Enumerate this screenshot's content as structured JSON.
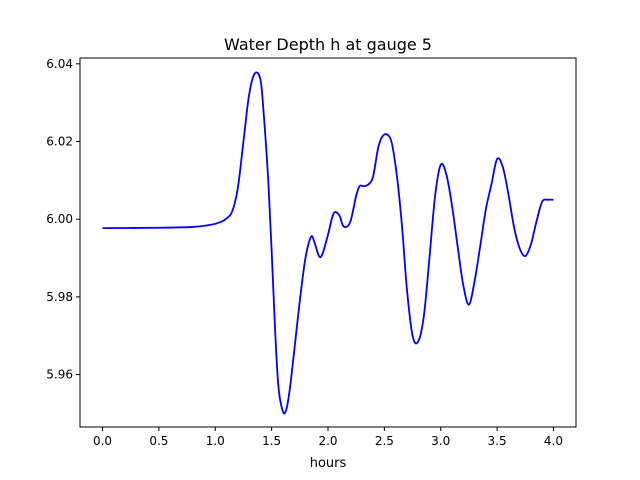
{
  "chart_data": {
    "type": "line",
    "title": "Water Depth h at gauge 5",
    "xlabel": "hours",
    "ylabel": "",
    "xlim": [
      -0.2,
      4.2
    ],
    "ylim": [
      5.9465,
      6.0415
    ],
    "xticks": [
      0.0,
      0.5,
      1.0,
      1.5,
      2.0,
      2.5,
      3.0,
      3.5,
      4.0
    ],
    "xtick_labels": [
      "0.0",
      "0.5",
      "1.0",
      "1.5",
      "2.0",
      "2.5",
      "3.0",
      "3.5",
      "4.0"
    ],
    "yticks": [
      5.96,
      5.98,
      6.0,
      6.02,
      6.04
    ],
    "ytick_labels": [
      "5.96",
      "5.98",
      "6.00",
      "6.02",
      "6.04"
    ],
    "grid": false,
    "series": [
      {
        "color": "#0000ff",
        "x": [
          0.0,
          0.5,
          0.8,
          0.95,
          1.05,
          1.1,
          1.15,
          1.2,
          1.25,
          1.3,
          1.35,
          1.4,
          1.43,
          1.47,
          1.5,
          1.53,
          1.56,
          1.6,
          1.63,
          1.66,
          1.7,
          1.75,
          1.8,
          1.85,
          1.88,
          1.92,
          1.95,
          2.0,
          2.05,
          2.1,
          2.13,
          2.16,
          2.2,
          2.25,
          2.28,
          2.32,
          2.36,
          2.4,
          2.45,
          2.5,
          2.55,
          2.58,
          2.62,
          2.66,
          2.7,
          2.75,
          2.8,
          2.85,
          2.9,
          2.95,
          3.0,
          3.05,
          3.1,
          3.15,
          3.2,
          3.25,
          3.3,
          3.35,
          3.4,
          3.45,
          3.5,
          3.55,
          3.6,
          3.65,
          3.7,
          3.75,
          3.8,
          3.85,
          3.9,
          3.95,
          4.0
        ],
        "y": [
          5.9977,
          5.9978,
          5.998,
          5.9985,
          5.9993,
          6.0002,
          6.002,
          6.008,
          6.02,
          6.032,
          6.0375,
          6.036,
          6.027,
          6.01,
          5.992,
          5.972,
          5.957,
          5.9505,
          5.951,
          5.956,
          5.966,
          5.979,
          5.99,
          5.9955,
          5.994,
          5.9905,
          5.991,
          5.996,
          6.0015,
          6.001,
          5.9985,
          5.998,
          5.9995,
          6.006,
          6.0085,
          6.0085,
          6.009,
          6.011,
          6.019,
          6.0218,
          6.021,
          6.0175,
          6.009,
          5.997,
          5.982,
          5.97,
          5.9685,
          5.975,
          5.99,
          6.006,
          6.014,
          6.0115,
          6.0035,
          5.993,
          5.983,
          5.978,
          5.984,
          5.993,
          6.0025,
          6.009,
          6.0155,
          6.0135,
          6.0065,
          5.998,
          5.9925,
          5.9905,
          5.9935,
          5.9995,
          6.0045,
          6.005,
          6.005
        ]
      }
    ]
  }
}
